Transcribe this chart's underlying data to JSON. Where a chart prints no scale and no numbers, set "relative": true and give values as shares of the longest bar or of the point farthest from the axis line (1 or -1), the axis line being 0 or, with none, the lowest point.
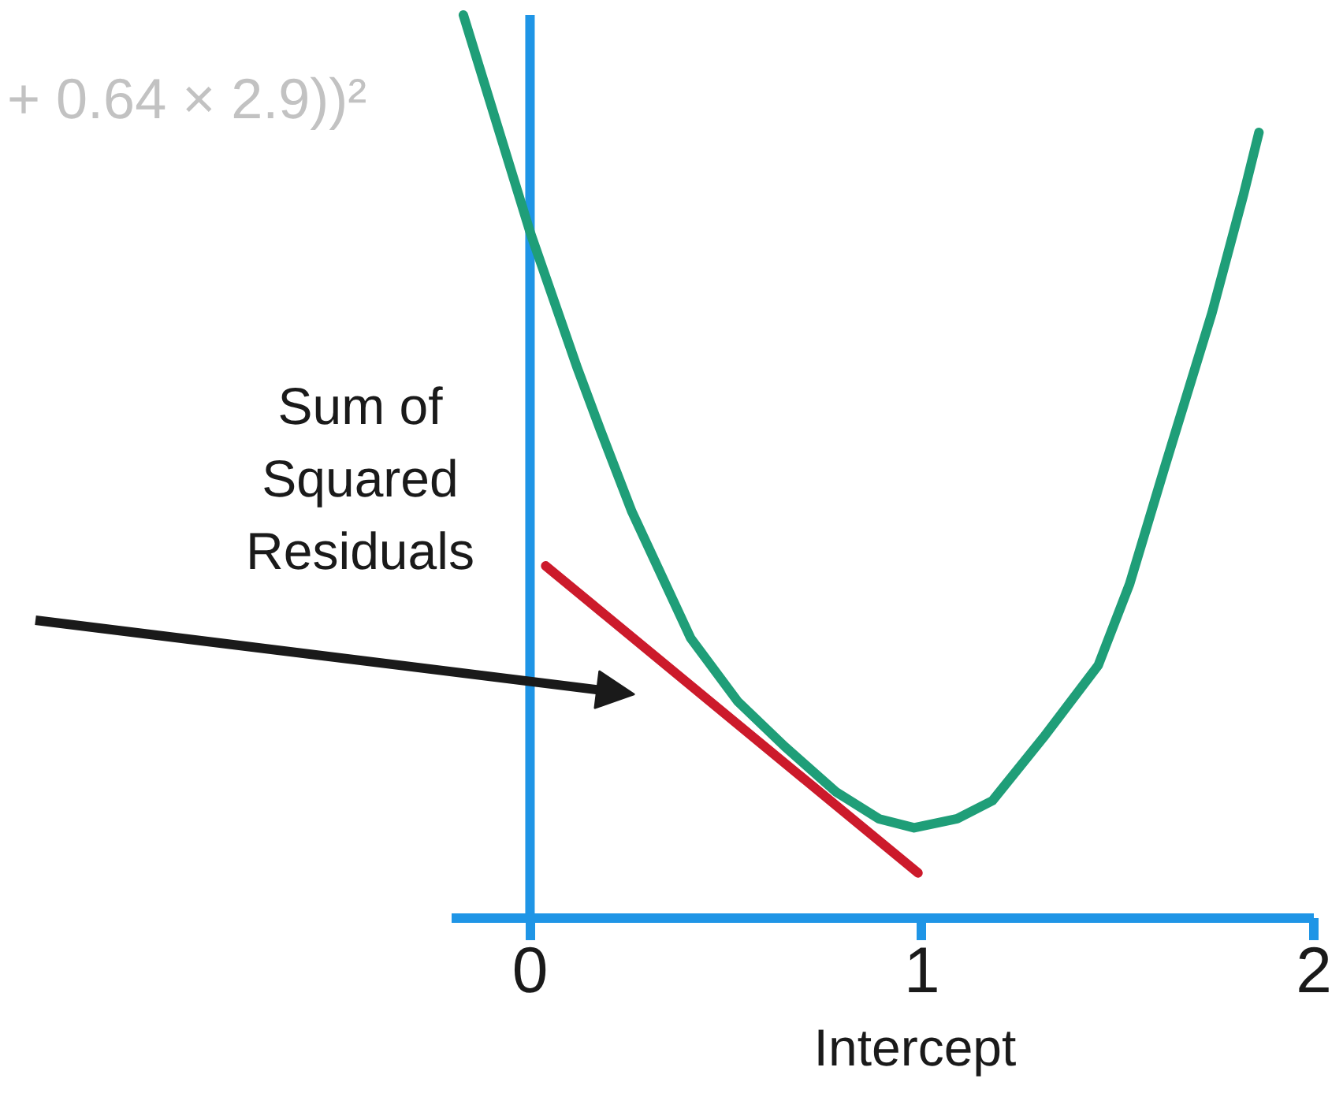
{
  "chart_data": {
    "type": "line",
    "relative": true,
    "xlabel": "Intercept",
    "ylabel": "Sum of Squared Residuals",
    "annotations": [
      "+ 0.64 × 2.9))²"
    ],
    "xlim": [
      -0.2,
      2
    ],
    "xticks": [
      0,
      1,
      2
    ],
    "ref_lines": [
      {
        "axis": "x",
        "value": 0,
        "color": "#1f95e6"
      }
    ],
    "series": [
      {
        "color": "#1f9e78",
        "x": [
          -0.17,
          0.0,
          0.12,
          0.18,
          0.26,
          0.41,
          0.53,
          0.65,
          0.78,
          0.89,
          0.98,
          1.09,
          1.18,
          1.31,
          1.45,
          1.53,
          1.62,
          1.74,
          1.82,
          1.86
        ],
        "values": [
          1.0,
          0.76,
          0.61,
          0.54,
          0.45,
          0.31,
          0.24,
          0.19,
          0.14,
          0.11,
          0.1,
          0.11,
          0.13,
          0.2,
          0.28,
          0.37,
          0.5,
          0.67,
          0.8,
          0.87
        ]
      },
      {
        "type": "line",
        "color": "#cc1a2b",
        "x": [
          0.04,
          0.99
        ],
        "values": [
          0.39,
          0.05
        ]
      }
    ]
  }
}
